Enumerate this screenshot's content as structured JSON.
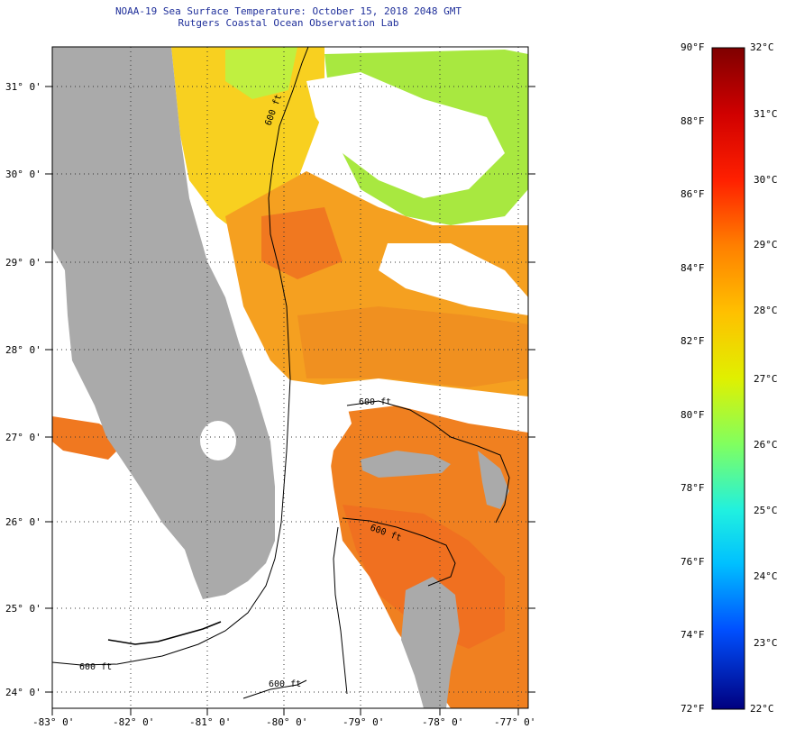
{
  "header": {
    "title": "NOAA-19 Sea Surface Temperature:  October 15, 2018 2048 GMT",
    "subtitle": "Rutgers Coastal Ocean Observation Lab"
  },
  "map": {
    "lat_labels": [
      "31° 0'",
      "30° 0'",
      "29° 0'",
      "28° 0'",
      "27° 0'",
      "26° 0'",
      "25° 0'",
      "24° 0'"
    ],
    "lon_labels": [
      "-83° 0'",
      "-82° 0'",
      "-81° 0'",
      "-80° 0'",
      "-79° 0'",
      "-78° 0'",
      "-77° 0'"
    ],
    "contour_label": "600 ft",
    "colors": {
      "land": "#aaaaaa",
      "cloud": "#ffffff",
      "warm": "#f07820",
      "mid": "#f8c020",
      "cool": "#a8e840"
    }
  },
  "colorbar": {
    "f_labels": [
      "90°F",
      "88°F",
      "86°F",
      "84°F",
      "82°F",
      "80°F",
      "78°F",
      "76°F",
      "74°F",
      "72°F"
    ],
    "c_labels": [
      "32°C",
      "31°C",
      "30°C",
      "29°C",
      "28°C",
      "27°C",
      "26°C",
      "25°C",
      "24°C",
      "23°C",
      "22°C"
    ]
  }
}
